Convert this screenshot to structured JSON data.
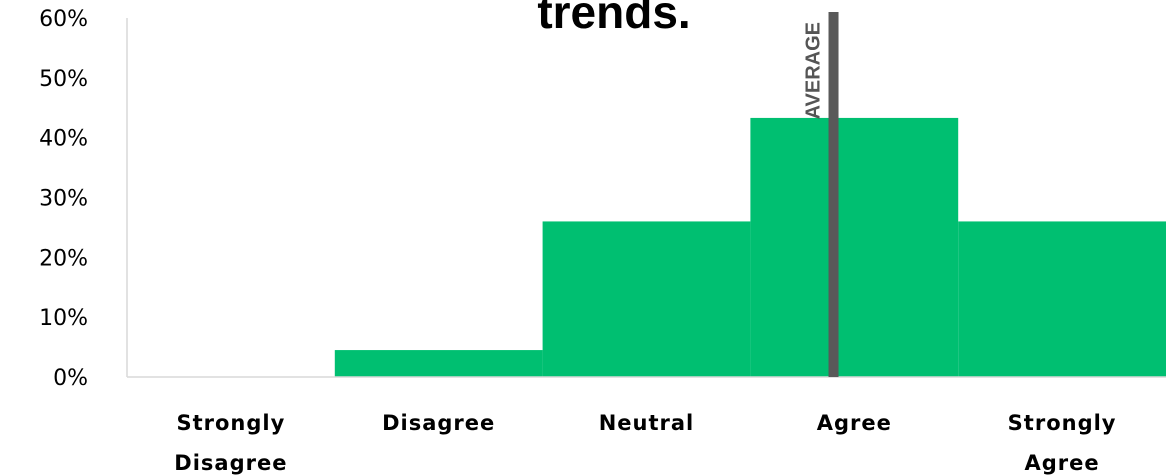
{
  "chart_data": {
    "type": "bar",
    "title": "trends.",
    "categories": [
      "Strongly Disagree",
      "Disagree",
      "Neutral",
      "Agree",
      "Strongly Agree"
    ],
    "values": [
      0,
      4.5,
      26,
      43.3,
      26
    ],
    "unit": "%",
    "ylim": [
      0,
      60
    ],
    "yticks": [
      "0%",
      "10%",
      "20%",
      "30%",
      "40%",
      "50%",
      "60%"
    ],
    "bar_color": "#00BF71",
    "average": {
      "label": "AVERAGE",
      "position": 3.4,
      "color": "#595959"
    },
    "grid": false,
    "legend": "none"
  }
}
